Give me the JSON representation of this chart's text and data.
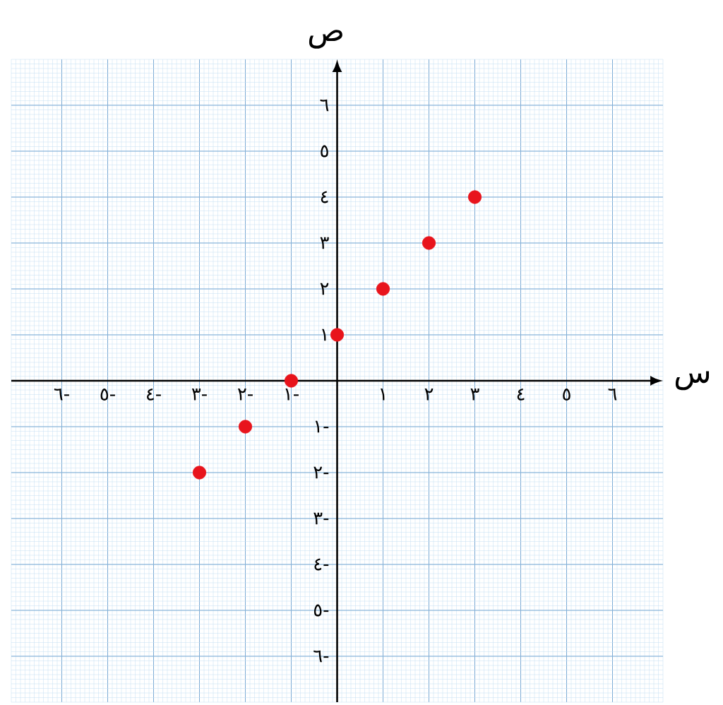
{
  "chart_data": {
    "type": "scatter",
    "xlabel": "س",
    "ylabel": "ص",
    "x": [
      -3,
      -2,
      -1,
      0,
      1,
      2,
      3
    ],
    "values": [
      -2,
      -1,
      0,
      1,
      2,
      3,
      4
    ],
    "color": "#e8141c",
    "marker": "circle",
    "xlim": [
      -7.1,
      7.1
    ],
    "ylim": [
      -7,
      7
    ],
    "xticks": [
      {
        "value": -6,
        "label": "٦-"
      },
      {
        "value": -5,
        "label": "٥-"
      },
      {
        "value": -4,
        "label": "٤-"
      },
      {
        "value": -3,
        "label": "٣-"
      },
      {
        "value": -2,
        "label": "٢-"
      },
      {
        "value": -1,
        "label": "١-"
      },
      {
        "value": 1,
        "label": "١"
      },
      {
        "value": 2,
        "label": "٢"
      },
      {
        "value": 3,
        "label": "٣"
      },
      {
        "value": 4,
        "label": "٤"
      },
      {
        "value": 5,
        "label": "٥"
      },
      {
        "value": 6,
        "label": "٦"
      }
    ],
    "yticks": [
      {
        "value": -6,
        "label": "٦-"
      },
      {
        "value": -5,
        "label": "٥-"
      },
      {
        "value": -4,
        "label": "٤-"
      },
      {
        "value": -3,
        "label": "٣-"
      },
      {
        "value": -2,
        "label": "٢-"
      },
      {
        "value": -1,
        "label": "١-"
      },
      {
        "value": 1,
        "label": "١"
      },
      {
        "value": 2,
        "label": "٢"
      },
      {
        "value": 3,
        "label": "٣"
      },
      {
        "value": 4,
        "label": "٤"
      },
      {
        "value": 5,
        "label": "٥"
      },
      {
        "value": 6,
        "label": "٦"
      }
    ],
    "grid": true
  }
}
